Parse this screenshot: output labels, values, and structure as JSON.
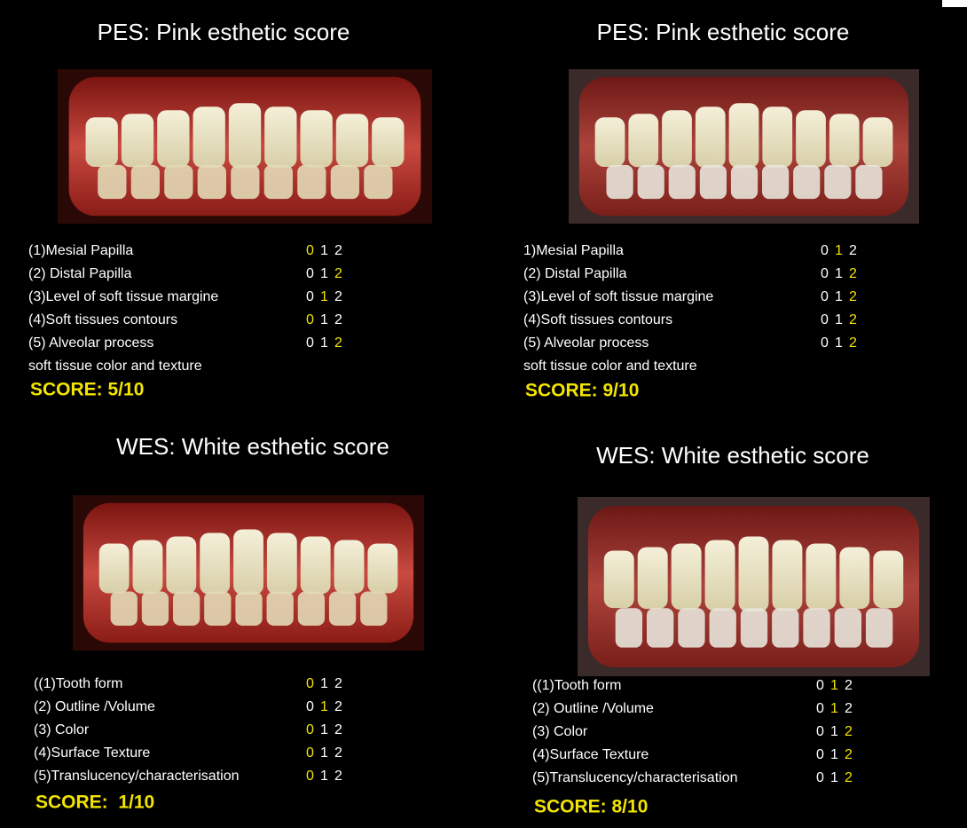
{
  "panels": [
    {
      "title": "PES: Pink esthetic score",
      "options": [
        "0",
        "1",
        "2"
      ],
      "criteria": [
        {
          "label": "(1)Mesial Papilla",
          "selected": 0
        },
        {
          "label": "(2) Distal Papilla",
          "selected": 2
        },
        {
          "label": "(3)Level of soft tissue margine",
          "selected": 1
        },
        {
          "label": "(4)Soft tissues contours",
          "selected": 0
        },
        {
          "label": "(5) Alveolar process",
          "selected": 2
        }
      ],
      "note": "soft tissue color and texture",
      "score": "SCORE: 5/10"
    },
    {
      "title": "PES: Pink esthetic score",
      "options": [
        "0",
        "1",
        "2"
      ],
      "criteria": [
        {
          "label": "1)Mesial Papilla",
          "selected": 1
        },
        {
          "label": "(2) Distal Papilla",
          "selected": 2
        },
        {
          "label": "(3)Level of soft tissue margine",
          "selected": 2
        },
        {
          "label": "(4)Soft tissues contours",
          "selected": 2
        },
        {
          "label": "(5) Alveolar process",
          "selected": 2
        }
      ],
      "note": "soft tissue color and texture",
      "score": "SCORE: 9/10"
    },
    {
      "title": "WES: White esthetic score",
      "options": [
        "0",
        "1",
        "2"
      ],
      "criteria": [
        {
          "label": "((1)Tooth form",
          "selected": 0
        },
        {
          "label": "(2) Outline /Volume",
          "selected": 1
        },
        {
          "label": "(3) Color",
          "selected": 0
        },
        {
          "label": "(4)Surface Texture",
          "selected": 0
        },
        {
          "label": "(5)Translucency/characterisation",
          "selected": 0
        }
      ],
      "score": "SCORE:  1/10"
    },
    {
      "title": "WES: White esthetic score",
      "options": [
        "0",
        "1",
        "2"
      ],
      "criteria": [
        {
          "label": "((1)Tooth form",
          "selected": 1
        },
        {
          "label": "(2) Outline /Volume",
          "selected": 1
        },
        {
          "label": "(3) Color",
          "selected": 2
        },
        {
          "label": "(4)Surface Texture",
          "selected": 2
        },
        {
          "label": "(5)Translucency/characterisation",
          "selected": 2
        }
      ],
      "score": "SCORE: 8/10"
    }
  ]
}
